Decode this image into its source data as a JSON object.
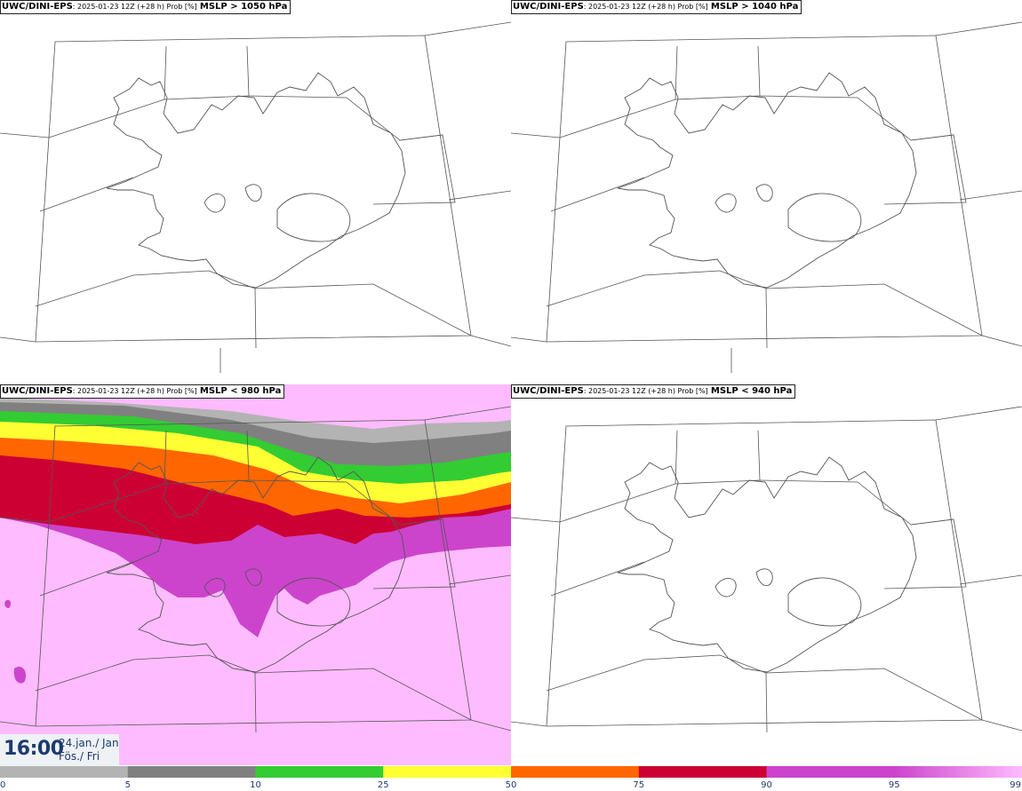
{
  "panels": [
    {
      "model": "UWC/DINI-EPS",
      "meta": ": 2025-01-23 12Z (+28 h) Prob [%]",
      "field": "MSLP > 1050 hPa"
    },
    {
      "model": "UWC/DINI-EPS",
      "meta": ": 2025-01-23 12Z (+28 h) Prob [%]",
      "field": "MSLP > 1040 hPa"
    },
    {
      "model": "UWC/DINI-EPS",
      "meta": ": 2025-01-23 12Z (+28 h) Prob [%]",
      "field": "MSLP < 980 hPa"
    },
    {
      "model": "UWC/DINI-EPS",
      "meta": ": 2025-01-23 12Z (+28 h) Prob [%]",
      "field": "MSLP < 940 hPa"
    }
  ],
  "time": {
    "clock": "16:00",
    "date_line1": "24.jan./ Jan",
    "date_line2": "Fös./ Fri"
  },
  "colorbar": {
    "ticks": [
      "0",
      "5",
      "10",
      "25",
      "50",
      "75",
      "90",
      "95",
      "99"
    ],
    "colors": [
      "#ffffff",
      "#b3b3b3",
      "#808080",
      "#33cc33",
      "#ffff33",
      "#ff6600",
      "#cc0033",
      "#cc44cc",
      "#ffbbff"
    ]
  }
}
